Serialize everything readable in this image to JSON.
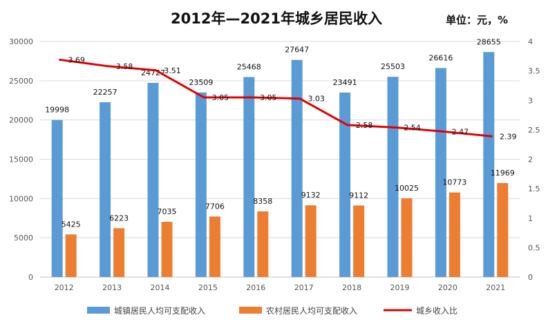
{
  "chart_data": {
    "type": "bar",
    "title": "2012年—2021年城乡居民收入",
    "unit_label": "单位：元，%",
    "categories": [
      "2012",
      "2013",
      "2014",
      "2015",
      "2016",
      "2017",
      "2018",
      "2019",
      "2020",
      "2021"
    ],
    "series": [
      {
        "name": "城镇居民人均可支配收入",
        "type": "bar",
        "axis": "left",
        "color": "#5B9BD5",
        "values": [
          19998,
          22257,
          24727,
          23509,
          25468,
          27647,
          23491,
          25503,
          26616,
          28655
        ]
      },
      {
        "name": "农村居民人均可支配收入",
        "type": "bar",
        "axis": "left",
        "color": "#ED7D31",
        "values": [
          5425,
          6223,
          7035,
          7706,
          8358,
          9132,
          9112,
          10025,
          10773,
          11969
        ]
      },
      {
        "name": "城乡收入比",
        "type": "line",
        "axis": "right",
        "color": "#E00000",
        "values": [
          3.69,
          3.58,
          3.51,
          3.05,
          3.05,
          3.03,
          2.58,
          2.54,
          2.47,
          2.39
        ]
      }
    ],
    "left_axis": {
      "ylim": [
        0,
        30000
      ],
      "ticks": [
        "0",
        "5000",
        "10000",
        "15000",
        "20000",
        "25000",
        "30000"
      ]
    },
    "right_axis": {
      "ylim": [
        0,
        4
      ],
      "ticks": [
        "0",
        "0.5",
        "1",
        "1.5",
        "2",
        "2.5",
        "3",
        "3.5",
        "4"
      ]
    },
    "grid": true,
    "legend_position": "bottom"
  }
}
